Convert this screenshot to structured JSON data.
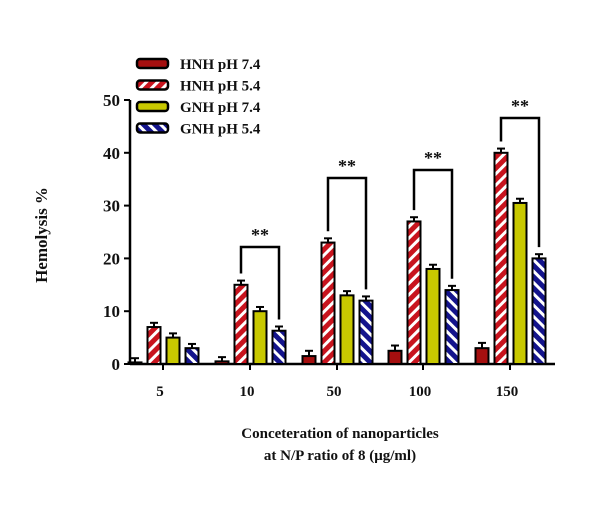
{
  "chart_data": {
    "type": "bar",
    "categories": [
      "5",
      "10",
      "50",
      "100",
      "150"
    ],
    "series": [
      {
        "name": "HNH pH 7.4",
        "values": [
          0.3,
          0.5,
          1.5,
          2.5,
          3
        ],
        "errors": [
          0.8,
          0.8,
          1,
          1,
          1
        ],
        "color": "#a50f0f",
        "pattern": "solid"
      },
      {
        "name": "HNH pH 5.4",
        "values": [
          7,
          15,
          23,
          27,
          40
        ],
        "errors": [
          0.8,
          0.8,
          0.8,
          0.8,
          0.8
        ],
        "color": "#c8141e",
        "pattern": "hatched"
      },
      {
        "name": "GNH pH 7.4",
        "values": [
          5,
          10,
          13,
          18,
          30.5
        ],
        "errors": [
          0.8,
          0.8,
          0.8,
          0.8,
          0.8
        ],
        "color": "#c8c800",
        "pattern": "solid"
      },
      {
        "name": "GNH pH 5.4",
        "values": [
          3,
          6.3,
          12,
          14,
          20
        ],
        "errors": [
          0.8,
          0.8,
          0.8,
          0.8,
          0.8
        ],
        "color": "#14148c",
        "pattern": "hatched"
      }
    ],
    "ylabel": "Hemolysis %",
    "xlabel": [
      "Conceteration of  nanoparticles",
      "at N/P ratio of 8  (μg/ml)"
    ],
    "ylim": [
      0,
      50
    ],
    "yticks": [
      "0",
      "10",
      "20",
      "30",
      "40",
      "50"
    ],
    "legend": "top-left",
    "significance": [
      {
        "category": "10",
        "label": "**"
      },
      {
        "category": "50",
        "label": "**"
      },
      {
        "category": "100",
        "label": "**"
      },
      {
        "category": "150",
        "label": "**"
      }
    ]
  }
}
